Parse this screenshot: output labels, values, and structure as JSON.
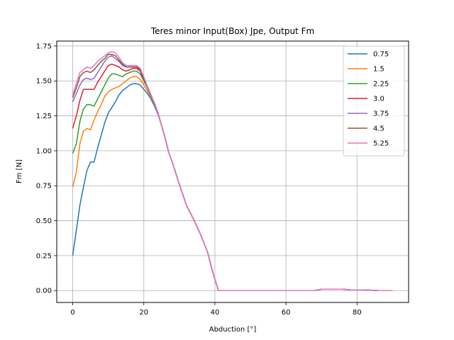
{
  "chart_data": {
    "type": "line",
    "title": "Teres minor Input(Box) Jpe, Output Fm",
    "xlabel": "Abduction [°]",
    "ylabel": "Fm [N]",
    "xlim": [
      -4.5,
      94.5
    ],
    "ylim": [
      -0.085,
      1.785
    ],
    "xticks": [
      0,
      20,
      40,
      60,
      80
    ],
    "xtick_labels": [
      "0",
      "20",
      "40",
      "60",
      "80"
    ],
    "yticks": [
      0.0,
      0.25,
      0.5,
      0.75,
      1.0,
      1.25,
      1.5,
      1.75
    ],
    "ytick_labels": [
      "0.00",
      "0.25",
      "0.50",
      "0.75",
      "1.00",
      "1.25",
      "1.50",
      "1.75"
    ],
    "grid": true,
    "legend_position": "top-right",
    "series": [
      {
        "name": "0.75",
        "color": "#1f77b4",
        "x": [
          0,
          1,
          2,
          3,
          4,
          5,
          6,
          7,
          8,
          9,
          10,
          11,
          12,
          13,
          14,
          15,
          16,
          17,
          18,
          19,
          20,
          21,
          22,
          23,
          24,
          25,
          26,
          27,
          28,
          29,
          30,
          32,
          34,
          36,
          38,
          39,
          40,
          41,
          50,
          60,
          68,
          69,
          70,
          76,
          78,
          80,
          82,
          84,
          86,
          88,
          90
        ],
        "y": [
          0.25,
          0.43,
          0.61,
          0.74,
          0.86,
          0.92,
          0.92,
          1.02,
          1.11,
          1.2,
          1.27,
          1.31,
          1.35,
          1.4,
          1.43,
          1.45,
          1.47,
          1.48,
          1.48,
          1.47,
          1.44,
          1.41,
          1.37,
          1.32,
          1.26,
          1.18,
          1.09,
          0.99,
          0.92,
          0.84,
          0.76,
          0.61,
          0.51,
          0.4,
          0.27,
          0.17,
          0.08,
          0.0,
          0.0,
          0.0,
          0.0,
          0.005,
          0.01,
          0.01,
          0.005,
          0.005,
          0.005,
          0.002,
          0.0,
          0.0,
          0.0
        ]
      },
      {
        "name": "1.5",
        "color": "#ff7f0e",
        "x": [
          0,
          1,
          2,
          3,
          4,
          5,
          6,
          7,
          8,
          9,
          10,
          11,
          12,
          13,
          14,
          15,
          16,
          17,
          18,
          19,
          20,
          21,
          22,
          23,
          24,
          25,
          26,
          27,
          28,
          29,
          30,
          32,
          34,
          36,
          38,
          39,
          40,
          41,
          50,
          60,
          68,
          69,
          70,
          76,
          78,
          80,
          82,
          84,
          86,
          88,
          90
        ],
        "y": [
          0.74,
          0.85,
          1.05,
          1.14,
          1.16,
          1.15,
          1.22,
          1.28,
          1.33,
          1.39,
          1.42,
          1.44,
          1.45,
          1.46,
          1.48,
          1.5,
          1.52,
          1.53,
          1.53,
          1.51,
          1.47,
          1.43,
          1.38,
          1.33,
          1.27,
          1.18,
          1.09,
          0.99,
          0.92,
          0.84,
          0.76,
          0.61,
          0.51,
          0.4,
          0.27,
          0.17,
          0.08,
          0.0,
          0.0,
          0.0,
          0.0,
          0.005,
          0.01,
          0.01,
          0.005,
          0.005,
          0.005,
          0.002,
          0.0,
          0.0,
          0.0
        ]
      },
      {
        "name": "2.25",
        "color": "#2ca02c",
        "x": [
          0,
          1,
          2,
          3,
          4,
          5,
          6,
          7,
          8,
          9,
          10,
          11,
          12,
          13,
          14,
          15,
          16,
          17,
          18,
          19,
          20,
          21,
          22,
          23,
          24,
          25,
          26,
          27,
          28,
          29,
          30,
          32,
          34,
          36,
          38,
          39,
          40,
          41,
          50,
          60,
          68,
          69,
          70,
          76,
          78,
          80,
          82,
          84,
          86,
          88,
          90
        ],
        "y": [
          0.98,
          1.05,
          1.21,
          1.3,
          1.33,
          1.33,
          1.32,
          1.37,
          1.42,
          1.47,
          1.52,
          1.55,
          1.55,
          1.54,
          1.53,
          1.55,
          1.56,
          1.57,
          1.57,
          1.55,
          1.5,
          1.45,
          1.39,
          1.33,
          1.27,
          1.18,
          1.09,
          0.99,
          0.92,
          0.84,
          0.76,
          0.61,
          0.51,
          0.4,
          0.27,
          0.17,
          0.08,
          0.0,
          0.0,
          0.0,
          0.0,
          0.005,
          0.01,
          0.01,
          0.005,
          0.005,
          0.005,
          0.002,
          0.0,
          0.0,
          0.0
        ]
      },
      {
        "name": "3.0",
        "color": "#d62728",
        "x": [
          0,
          1,
          2,
          3,
          4,
          5,
          6,
          7,
          8,
          9,
          10,
          11,
          12,
          13,
          14,
          15,
          16,
          17,
          18,
          19,
          20,
          21,
          22,
          23,
          24,
          25,
          26,
          27,
          28,
          29,
          30,
          32,
          34,
          36,
          38,
          39,
          40,
          41,
          50,
          60,
          68,
          69,
          70,
          76,
          78,
          80,
          82,
          84,
          86,
          88,
          90
        ],
        "y": [
          1.16,
          1.25,
          1.36,
          1.44,
          1.44,
          1.44,
          1.44,
          1.49,
          1.53,
          1.57,
          1.61,
          1.62,
          1.61,
          1.6,
          1.58,
          1.57,
          1.58,
          1.59,
          1.59,
          1.57,
          1.51,
          1.46,
          1.4,
          1.34,
          1.27,
          1.18,
          1.09,
          0.99,
          0.92,
          0.84,
          0.76,
          0.61,
          0.51,
          0.4,
          0.27,
          0.17,
          0.08,
          0.0,
          0.0,
          0.0,
          0.0,
          0.005,
          0.01,
          0.01,
          0.005,
          0.005,
          0.005,
          0.002,
          0.0,
          0.0,
          0.0
        ]
      },
      {
        "name": "3.75",
        "color": "#9467bd",
        "x": [
          0,
          1,
          2,
          3,
          4,
          5,
          6,
          7,
          8,
          9,
          10,
          11,
          12,
          13,
          14,
          15,
          16,
          17,
          18,
          19,
          20,
          21,
          22,
          23,
          24,
          25,
          26,
          27,
          28,
          29,
          30,
          32,
          34,
          36,
          38,
          39,
          40,
          41,
          50,
          60,
          68,
          69,
          70,
          76,
          78,
          80,
          82,
          84,
          86,
          88,
          90
        ],
        "y": [
          1.35,
          1.41,
          1.47,
          1.51,
          1.52,
          1.51,
          1.52,
          1.56,
          1.6,
          1.64,
          1.67,
          1.68,
          1.66,
          1.64,
          1.61,
          1.6,
          1.6,
          1.6,
          1.6,
          1.58,
          1.52,
          1.46,
          1.4,
          1.34,
          1.27,
          1.18,
          1.09,
          0.99,
          0.92,
          0.84,
          0.76,
          0.61,
          0.51,
          0.4,
          0.27,
          0.17,
          0.08,
          0.0,
          0.0,
          0.0,
          0.0,
          0.005,
          0.01,
          0.01,
          0.005,
          0.005,
          0.005,
          0.002,
          0.0,
          0.0,
          0.0
        ]
      },
      {
        "name": "4.5",
        "color": "#8c564b",
        "x": [
          0,
          1,
          2,
          3,
          4,
          5,
          6,
          7,
          8,
          9,
          10,
          11,
          12,
          13,
          14,
          15,
          16,
          17,
          18,
          19,
          20,
          21,
          22,
          23,
          24,
          25,
          26,
          27,
          28,
          29,
          30,
          32,
          34,
          36,
          38,
          39,
          40,
          41,
          50,
          60,
          68,
          69,
          70,
          76,
          78,
          80,
          82,
          84,
          86,
          88,
          90
        ],
        "y": [
          1.38,
          1.45,
          1.53,
          1.56,
          1.57,
          1.56,
          1.58,
          1.61,
          1.64,
          1.66,
          1.69,
          1.69,
          1.68,
          1.65,
          1.62,
          1.6,
          1.6,
          1.6,
          1.6,
          1.58,
          1.52,
          1.46,
          1.4,
          1.34,
          1.27,
          1.18,
          1.09,
          0.99,
          0.92,
          0.84,
          0.76,
          0.61,
          0.51,
          0.4,
          0.27,
          0.17,
          0.08,
          0.0,
          0.0,
          0.0,
          0.0,
          0.005,
          0.01,
          0.01,
          0.005,
          0.005,
          0.005,
          0.002,
          0.0,
          0.0,
          0.0
        ]
      },
      {
        "name": "5.25",
        "color": "#e377c2",
        "x": [
          0,
          1,
          2,
          3,
          4,
          5,
          6,
          7,
          8,
          9,
          10,
          11,
          12,
          13,
          14,
          15,
          16,
          17,
          18,
          19,
          20,
          21,
          22,
          23,
          24,
          25,
          26,
          27,
          28,
          29,
          30,
          32,
          34,
          36,
          38,
          39,
          40,
          41,
          50,
          60,
          68,
          69,
          70,
          76,
          78,
          80,
          82,
          84,
          86,
          88,
          90
        ],
        "y": [
          1.4,
          1.48,
          1.56,
          1.58,
          1.6,
          1.59,
          1.61,
          1.64,
          1.66,
          1.68,
          1.7,
          1.71,
          1.7,
          1.67,
          1.63,
          1.61,
          1.61,
          1.61,
          1.61,
          1.59,
          1.53,
          1.46,
          1.4,
          1.34,
          1.27,
          1.18,
          1.09,
          0.99,
          0.92,
          0.84,
          0.76,
          0.61,
          0.51,
          0.4,
          0.27,
          0.17,
          0.08,
          0.0,
          0.0,
          0.0,
          0.0,
          0.005,
          0.01,
          0.01,
          0.005,
          0.005,
          0.005,
          0.002,
          0.0,
          0.0,
          0.0
        ]
      }
    ]
  }
}
